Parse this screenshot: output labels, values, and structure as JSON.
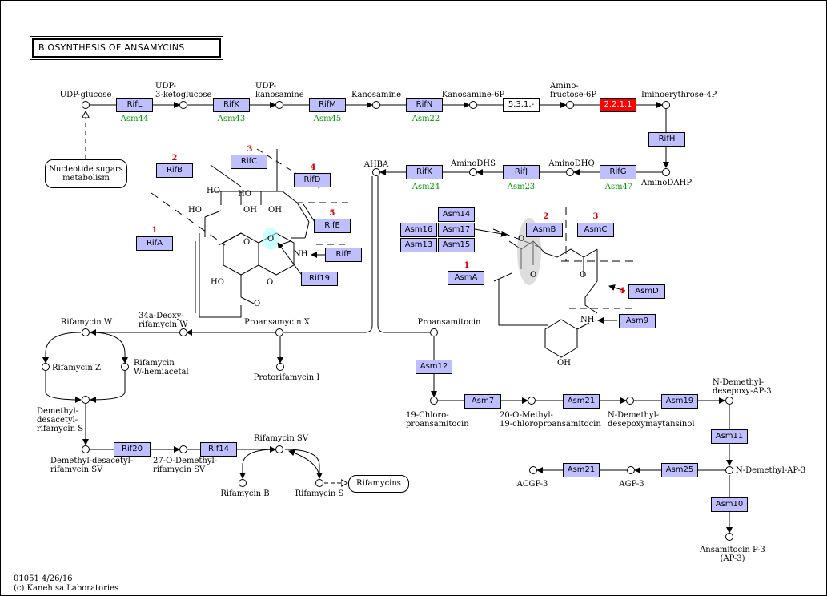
{
  "title": "BIOSYNTHESIS OF ANSAMYCINS",
  "footer": {
    "line1": "01051 4/26/16",
    "line2": "(c) Kanehisa Laboratories"
  },
  "compounds": {
    "udp_glucose": "UDP-glucose",
    "udp_3keto": "UDP-\n3-ketoglucose",
    "udp_kanosamine": "UDP-\nkanosamine",
    "kanosamine": "Kanosamine",
    "kanosamine_6p": "Kanosamine-6P",
    "amino_fructose_6p": "Amino-\nfructose-6P",
    "iminoerythrose_4p": "Iminoerythrose-4P",
    "amino_dahp": "AminoDAHP",
    "amino_dhq": "AminoDHQ",
    "amino_dhs": "AminoDHS",
    "ahba": "AHBA",
    "proansamycin_x": "Proansamycin X",
    "protorifamycin_i": "Protorifamycin I",
    "rifamycin_w_34a": "34a-Deoxy-\nrifamycin W",
    "rifamycin_w": "Rifamycin W",
    "rifamycin_z": "Rifamycin Z",
    "rifamycin_w_hemiacetal": "Rifamycin\nW-hemiacetal",
    "demethyl_desacetyl_s": "Demethyl-\ndesacetyl-\nrifamycin S",
    "demethyl_desacetyl_sv": "Demethyl-desacetyl-\nrifamycin SV",
    "o_demethyl_sv": "27-O-Demethyl-\nrifamycin SV",
    "rifamycin_sv": "Rifamycin SV",
    "rifamycin_b": "Rifamycin B",
    "rifamycin_s": "Rifamycin S",
    "proansamitocin": "Proansamitocin",
    "chloroproansamitocin": "19-Chloro-\nproansamitocin",
    "o_methyl_chloro": "20-O-Methyl-\n19-chloroproansamitocin",
    "n_demethyl_desepoxy_may": "N-Demethyl-\ndesepoxymaytansinol",
    "n_demethyl_desepoxy_ap3": "N-Demethyl-\ndesepoxy-AP-3",
    "n_demethyl_ap3": "N-Demethyl-AP-3",
    "agp3": "AGP-3",
    "acgp3": "ACGP-3",
    "ansamitocin_p3": "Ansamitocin P-3\n(AP-3)"
  },
  "genes": {
    "rifL": "RifL",
    "rifK_top": "RifK",
    "rifM": "RifM",
    "rifN": "RifN",
    "ec531": "5.3.1.-",
    "ec2211": "2.2.1.1",
    "rifH": "RifH",
    "rifG": "RifG",
    "rifJ": "RifJ",
    "rifK_mid": "RifK",
    "rifB": "RifB",
    "rifC": "RifC",
    "rifD": "RifD",
    "rifA": "RifA",
    "rifE": "RifE",
    "rifF": "RifF",
    "rif19": "Rif19",
    "rif20": "Rif20",
    "rif14": "Rif14",
    "asm14": "Asm14",
    "asm16": "Asm16",
    "asm17": "Asm17",
    "asm13": "Asm13",
    "asm15": "Asm15",
    "asmB": "AsmB",
    "asmC": "AsmC",
    "asmA": "AsmA",
    "asmD": "AsmD",
    "asm9": "Asm9",
    "asm12": "Asm12",
    "asm7": "Asm7",
    "asm21_a": "Asm21",
    "asm19": "Asm19",
    "asm11": "Asm11",
    "asm25": "Asm25",
    "asm21_b": "Asm21",
    "asm10": "Asm10"
  },
  "orthologs": {
    "asm44": "Asm44",
    "asm43": "Asm43",
    "asm45": "Asm45",
    "asm22": "Asm22",
    "asm24": "Asm24",
    "asm23": "Asm23",
    "asm47": "Asm47"
  },
  "module_numbers": {
    "rif_1": "1",
    "rif_2": "2",
    "rif_3": "3",
    "rif_4": "4",
    "rif_5": "5",
    "asm_1": "1",
    "asm_2": "2",
    "asm_3": "3",
    "asm_4": "4"
  },
  "maps": {
    "nucleotide_sugars": "Nucleotide sugars\nmetabolism",
    "rifamycins": "Rifamycins"
  },
  "structure_atoms": {
    "ho1": "HO",
    "ho2": "HO",
    "ho3": "HO",
    "oh1": "OH",
    "oh2": "OH",
    "ho4": "HO",
    "o1": "O",
    "o2": "O",
    "o3": "O",
    "o4": "O",
    "nh1": "NH",
    "oh_arom": "OH",
    "o5": "O",
    "o6": "O",
    "o7": "O",
    "nh2": "NH",
    "oh3": "OH"
  },
  "colors": {
    "gene_fill": "#bfbfff",
    "highlight": "#ff0000",
    "ortholog_text": "#009900",
    "module_number": "#dd0000"
  }
}
